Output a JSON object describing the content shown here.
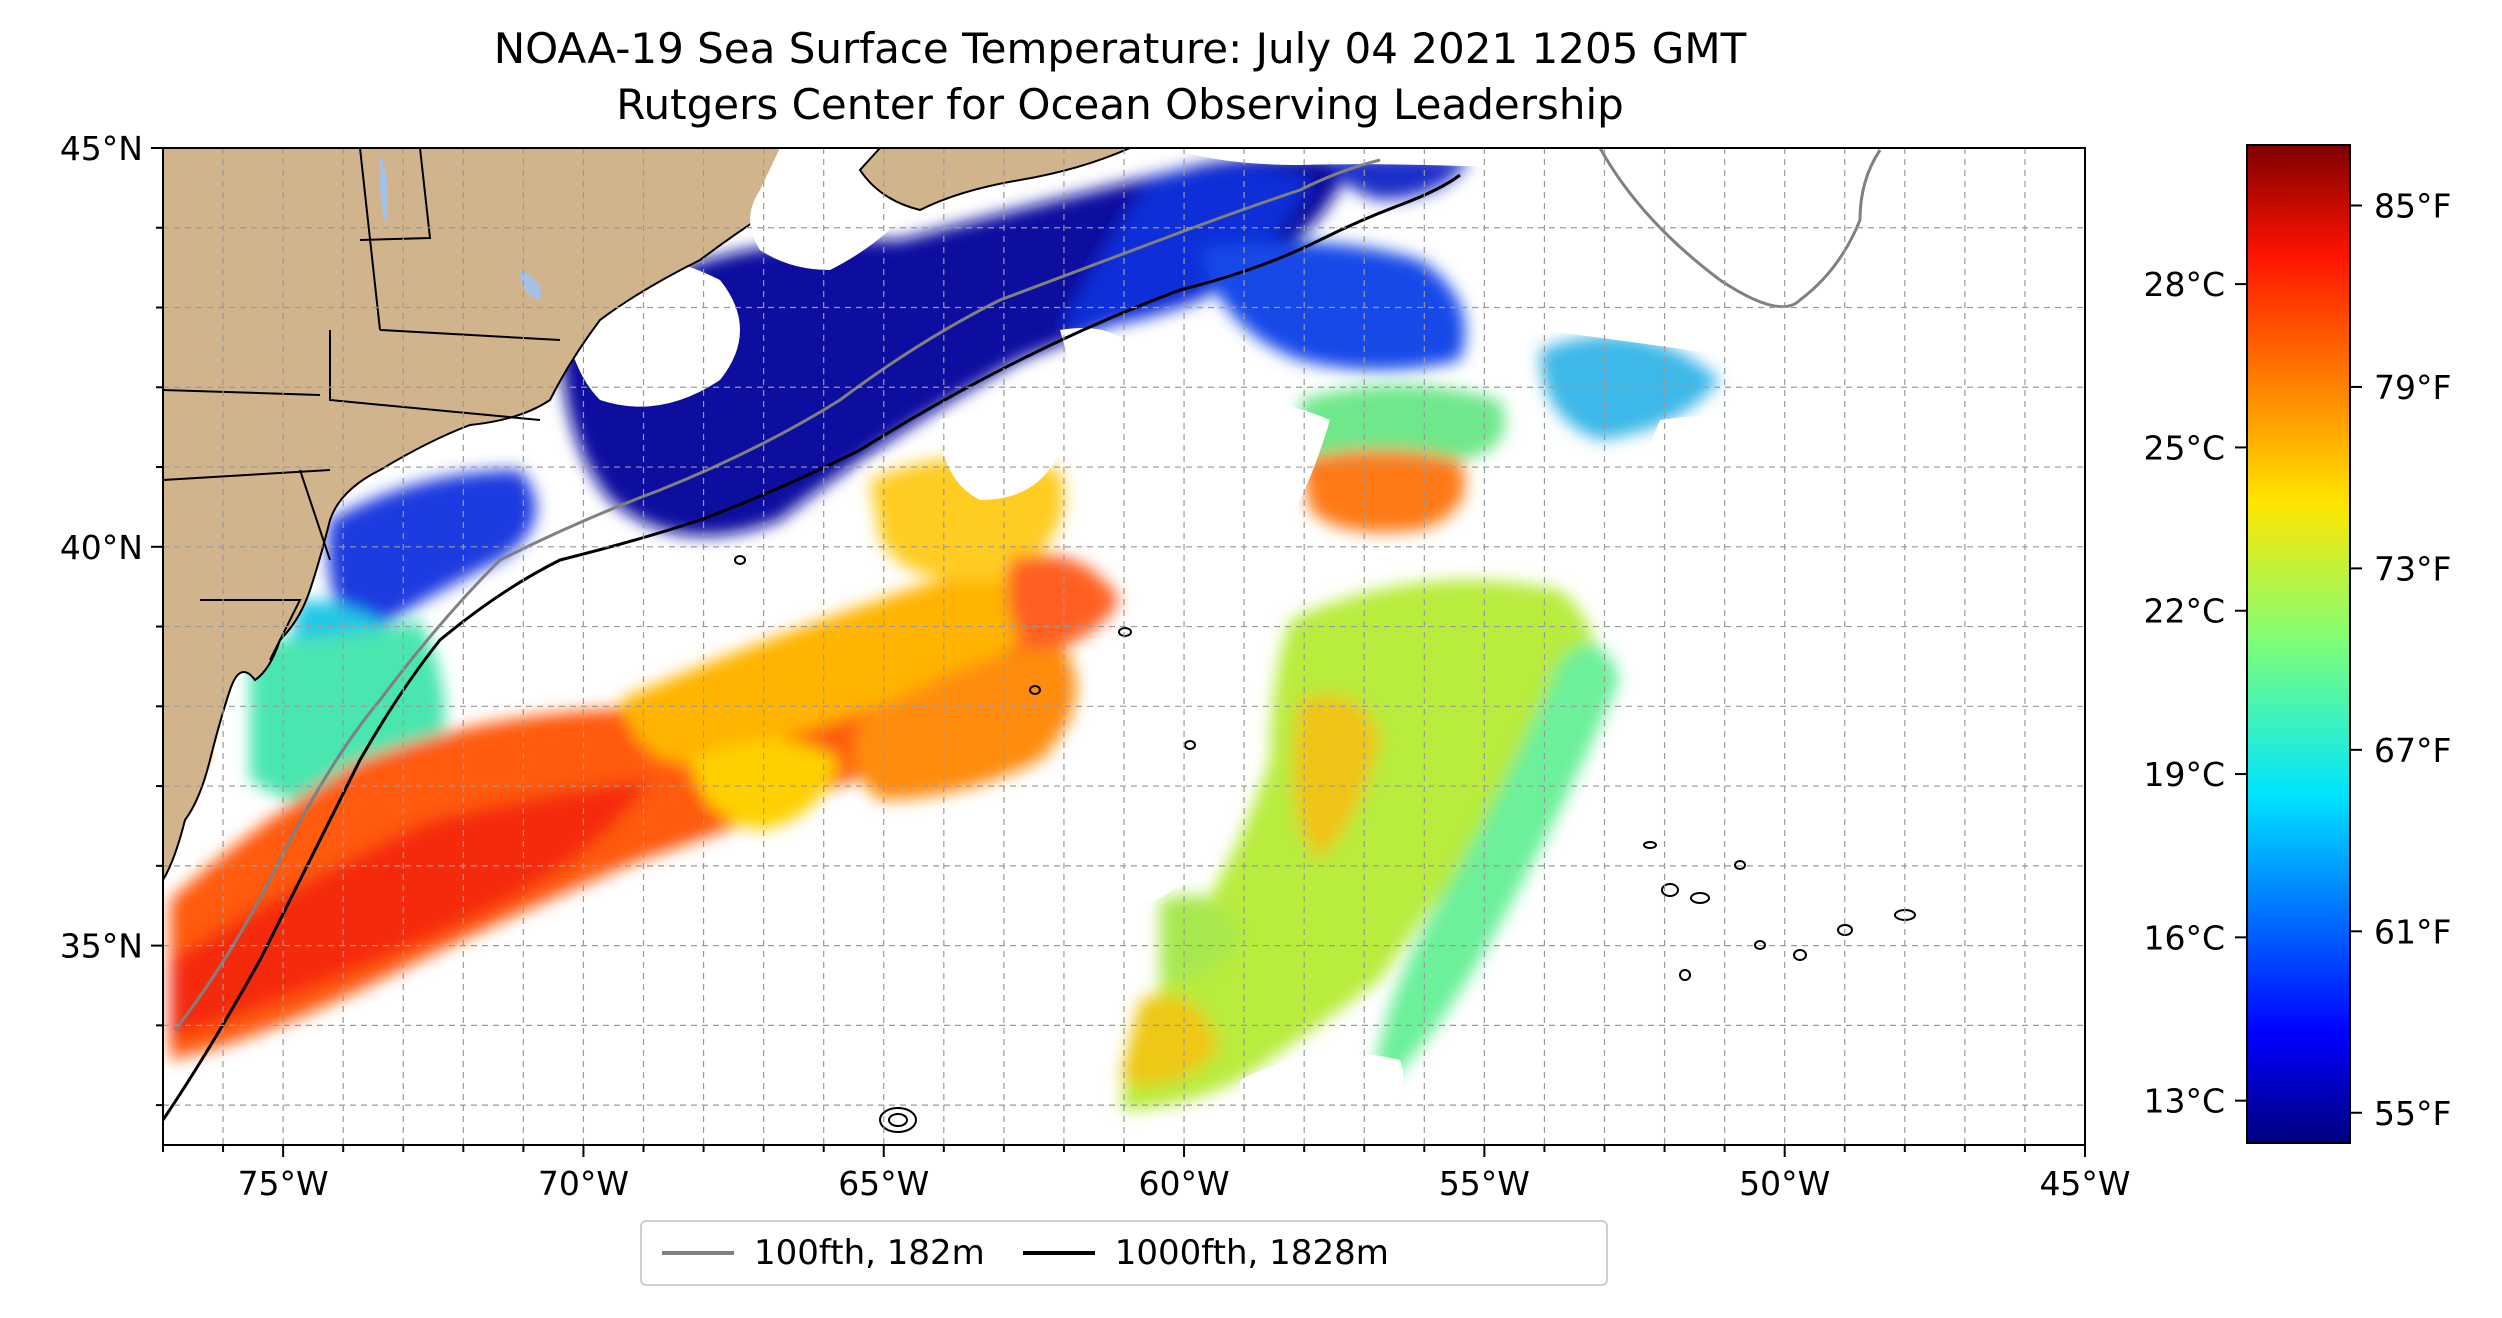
{
  "title": {
    "line1": "NOAA-19 Sea Surface Temperature: July 04 2021 1205 GMT",
    "line2": "Rutgers Center for Ocean Observing Leadership"
  },
  "map": {
    "lon_range": [
      -77,
      -45
    ],
    "lat_range": [
      32.5,
      45
    ],
    "lon_ticks": [
      -75,
      -70,
      -65,
      -60,
      -55,
      -50,
      -45
    ],
    "lat_ticks": [
      35,
      40,
      45
    ],
    "lon_labels": [
      "75°W",
      "70°W",
      "65°W",
      "60°W",
      "55°W",
      "50°W",
      "45°W"
    ],
    "lat_labels": [
      "35°N",
      "40°N",
      "45°N"
    ],
    "gridlines": "dashed",
    "colors": {
      "land": "#d2b48c",
      "water": "#ffffff",
      "lakes": "#a6c1e6"
    }
  },
  "colorbar": {
    "colormap": "jet",
    "range_f": [
      54,
      87
    ],
    "fahrenheit_labels": [
      "85°F",
      "79°F",
      "73°F",
      "67°F",
      "61°F",
      "55°F"
    ],
    "celsius_labels": [
      "28°C",
      "25°C",
      "22°C",
      "19°C",
      "16°C",
      "13°C"
    ]
  },
  "legend": {
    "placement": "bottom-center",
    "items": [
      {
        "label": "100fth, 182m",
        "color": "#808080"
      },
      {
        "label": "1000fth, 1828m",
        "color": "#000000"
      }
    ]
  }
}
